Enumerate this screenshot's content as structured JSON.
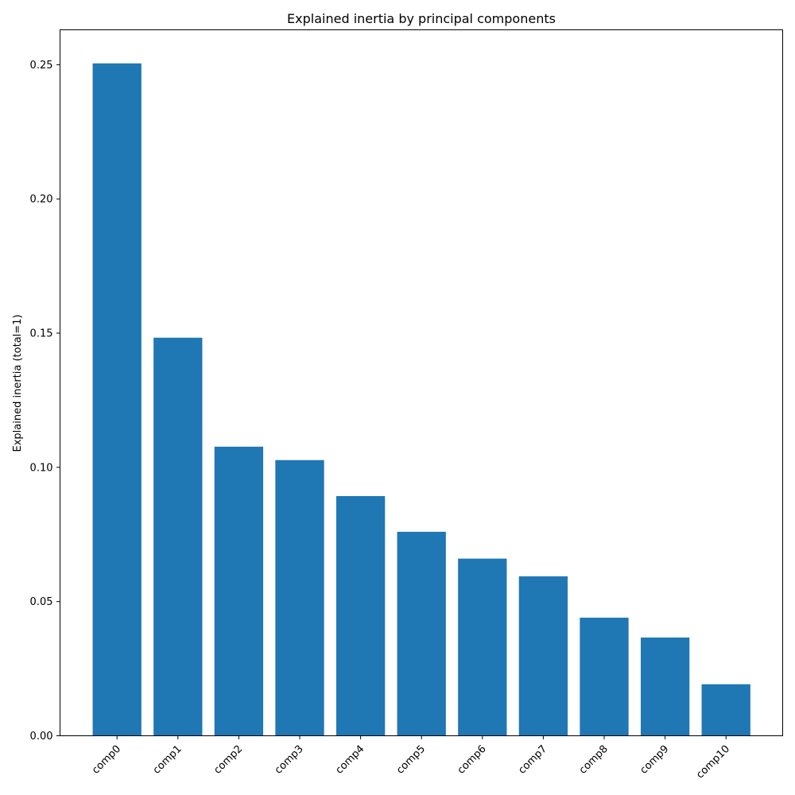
{
  "chart_data": {
    "type": "bar",
    "title": "Explained inertia by principal components",
    "xlabel": "",
    "ylabel": "Explained inertia (total=1)",
    "categories": [
      "comp0",
      "comp1",
      "comp2",
      "comp3",
      "comp4",
      "comp5",
      "comp6",
      "comp7",
      "comp8",
      "comp9",
      "comp10"
    ],
    "values": [
      0.2505,
      0.1483,
      0.1077,
      0.1027,
      0.0893,
      0.076,
      0.066,
      0.0594,
      0.044,
      0.0366,
      0.0192
    ],
    "ylim": [
      0,
      0.263
    ],
    "yticks": [
      "0.00",
      "0.05",
      "0.10",
      "0.15",
      "0.20",
      "0.25"
    ],
    "bar_color": "#1f77b4",
    "grid": false,
    "legend": "none"
  }
}
